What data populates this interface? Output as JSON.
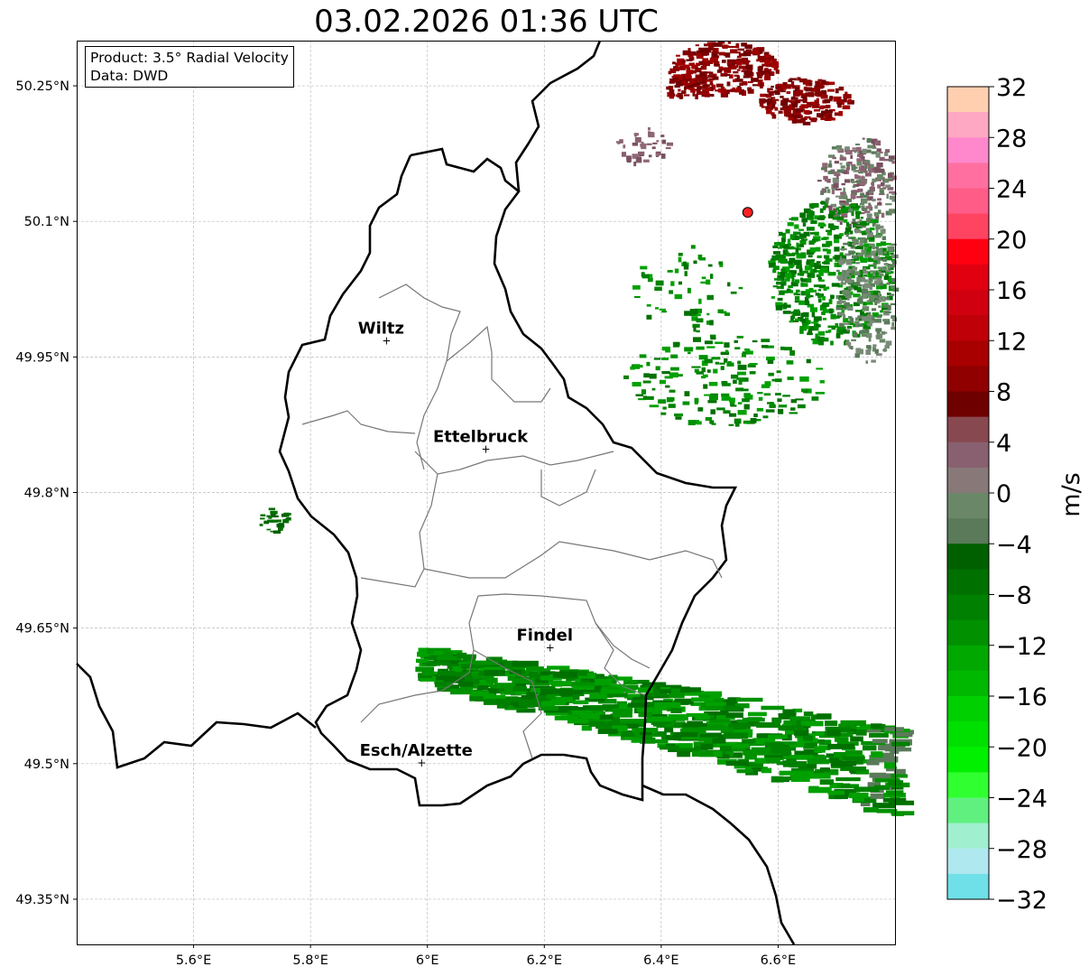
{
  "chart_data": {
    "type": "heatmap",
    "title": "03.02.2026 01:36 UTC",
    "legend": {
      "product": "Product: 3.5° Radial Velocity",
      "source": "Data: DWD"
    },
    "xlim": [
      5.4,
      6.8
    ],
    "ylim": [
      49.3,
      50.3
    ],
    "x_ticks": [
      5.6,
      5.8,
      6.0,
      6.2,
      6.4,
      6.6
    ],
    "x_tick_labels": [
      "5.6°E",
      "5.8°E",
      "6°E",
      "6.2°E",
      "6.4°E",
      "6.6°E"
    ],
    "y_ticks": [
      49.35,
      49.5,
      49.65,
      49.8,
      49.95,
      50.1,
      50.25
    ],
    "y_tick_labels": [
      "49.35°N",
      "49.5°N",
      "49.65°N",
      "49.8°N",
      "49.95°N",
      "50.1°N",
      "50.25°N"
    ],
    "grid": true,
    "colorbar": {
      "label": "m/s",
      "range": [
        -32,
        32
      ],
      "step": 2,
      "ticks": [
        32,
        28,
        24,
        20,
        16,
        12,
        8,
        4,
        0,
        -4,
        -8,
        -12,
        -16,
        -20,
        -24,
        -28,
        -32
      ],
      "tick_labels": [
        "32",
        "28",
        "24",
        "20",
        "16",
        "12",
        "8",
        "4",
        "0",
        "−4",
        "−8",
        "−12",
        "−16",
        "−20",
        "−24",
        "−28",
        "−32"
      ],
      "colors_top_to_bottom": [
        "#ffcfb0",
        "#ffa8c4",
        "#ff88cc",
        "#ff70a0",
        "#ff5c88",
        "#ff4462",
        "#ff0010",
        "#e00010",
        "#d00010",
        "#c00008",
        "#a80000",
        "#900000",
        "#6e0000",
        "#884850",
        "#886070",
        "#887878",
        "#6a8868",
        "#5a7a5a",
        "#006000",
        "#007000",
        "#008000",
        "#009000",
        "#00a800",
        "#00b800",
        "#00d000",
        "#00e000",
        "#00f000",
        "#30ff30",
        "#60f080",
        "#a0f0d0",
        "#b0e8f0",
        "#70e0e8"
      ]
    },
    "cities": [
      {
        "name": "Wiltz",
        "lon": 5.93,
        "lat": 49.967
      },
      {
        "name": "Ettelbruck",
        "lon": 6.1,
        "lat": 49.847
      },
      {
        "name": "Findel",
        "lon": 6.21,
        "lat": 49.627
      },
      {
        "name": "Esch/Alzette",
        "lon": 5.99,
        "lat": 49.5
      }
    ],
    "radar_site": {
      "lon": 6.548,
      "lat": 50.11,
      "color": "#ff2020"
    }
  }
}
